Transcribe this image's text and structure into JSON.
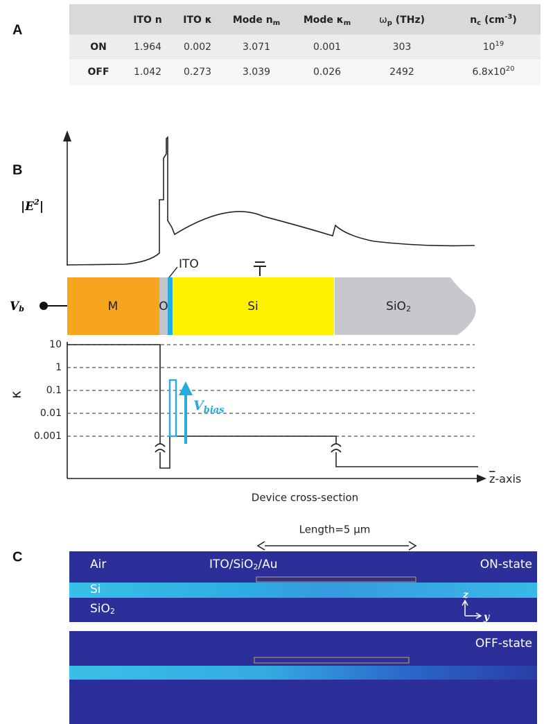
{
  "panel_labels": [
    "A",
    "B",
    "C"
  ],
  "table": {
    "header": [
      [
        "ITO n"
      ],
      [
        "ITO κ"
      ],
      [
        "Mode n",
        "m"
      ],
      [
        "Mode κ",
        "m"
      ],
      [
        "ω",
        "p",
        " (THz)"
      ],
      [
        "n",
        "c",
        " (cm",
        "-3",
        ")"
      ]
    ],
    "rows": [
      {
        "label": "ON",
        "cells": [
          "1.964",
          "0.002",
          "3.071",
          "0.001",
          "303",
          [
            "10",
            "19"
          ]
        ]
      },
      {
        "label": "OFF",
        "cells": [
          "1.042",
          "0.273",
          "3.039",
          "0.026",
          "2492",
          [
            "6.8x10",
            "20"
          ]
        ]
      }
    ]
  },
  "panel_b": {
    "field_label": [
      "|E",
      "2",
      "|"
    ],
    "ito_label": "ITO",
    "layers": [
      "M",
      "O",
      "Si",
      [
        "SiO",
        "2"
      ]
    ],
    "voltage_label": [
      "V",
      "b"
    ],
    "kappa_label": "κ",
    "kappa_ticks": [
      "10",
      "1",
      "0.1",
      "0.01",
      "0.001"
    ],
    "bias_label": [
      "V",
      "bias"
    ],
    "x_axis_label": [
      "z",
      "-axis"
    ],
    "caption": "Device cross-section"
  },
  "panel_c": {
    "length_label": "Length=5 μm",
    "on_labels": {
      "air": "Air",
      "stack": [
        "ITO/SiO",
        "2",
        "/Au"
      ],
      "si": "Si",
      "box": [
        "SiO",
        "2"
      ],
      "state": "ON-state",
      "z": "z",
      "y": "y"
    },
    "off_labels": {
      "state": "OFF-state"
    }
  }
}
